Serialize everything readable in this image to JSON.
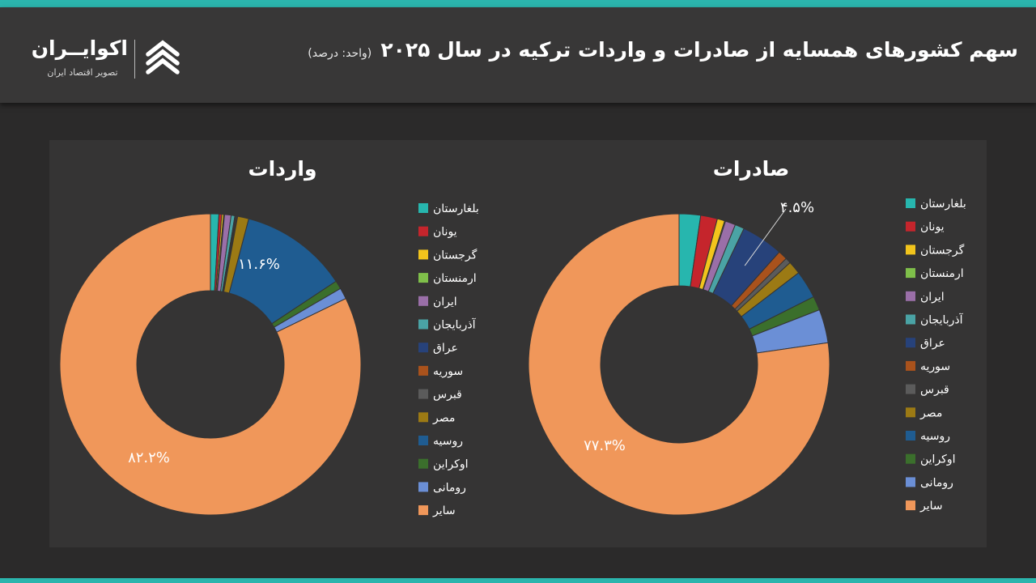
{
  "header": {
    "title": "سهم کشورهای همسایه از صادرات و واردات ترکیه در سال ۲۰۲۵",
    "unit": "(واحد: درصد)",
    "brand_name": "اکوایــران",
    "brand_tagline": "تصویر اقتصاد ایران"
  },
  "chart_data": [
    {
      "type": "donut",
      "title": "واردات",
      "categories": [
        "بلغارستان",
        "یونان",
        "گرجستان",
        "ارمنستان",
        "ایران",
        "آذربایجان",
        "عراق",
        "سوریه",
        "قبرس",
        "مصر",
        "روسیه",
        "اوکراین",
        "رومانی",
        "سایر"
      ],
      "values": [
        0.9,
        0.3,
        0.2,
        0.1,
        0.7,
        0.4,
        0.1,
        0.1,
        0.1,
        1.2,
        11.6,
        0.9,
        1.2,
        82.2
      ],
      "data_labels": [
        {
          "category": "روسیه",
          "label": "۱۱.۶%"
        },
        {
          "category": "سایر",
          "label": "۸۲.۲%"
        }
      ],
      "legend_position": "right"
    },
    {
      "type": "donut",
      "title": "صادرات",
      "categories": [
        "بلغارستان",
        "یونان",
        "گرجستان",
        "ارمنستان",
        "ایران",
        "آذربایجان",
        "عراق",
        "سوریه",
        "قبرس",
        "مصر",
        "روسیه",
        "اوکراین",
        "رومانی",
        "سایر"
      ],
      "values": [
        2.3,
        1.8,
        0.8,
        0.1,
        1.1,
        1.0,
        4.5,
        1.0,
        0.6,
        1.4,
        3.0,
        1.5,
        3.6,
        77.3
      ],
      "data_labels": [
        {
          "category": "عراق",
          "label": "۴.۵%"
        },
        {
          "category": "سایر",
          "label": "۷۷.۳%"
        }
      ],
      "legend_position": "right"
    }
  ],
  "colors": [
    "#27b6ae",
    "#c5252c",
    "#f2c41c",
    "#7fbf4a",
    "#9a6fa8",
    "#4aa3a5",
    "#27427a",
    "#a9521c",
    "#5b5b5b",
    "#9c7a14",
    "#1f5c91",
    "#3b6f2c",
    "#6b8fd6",
    "#f0975a"
  ]
}
